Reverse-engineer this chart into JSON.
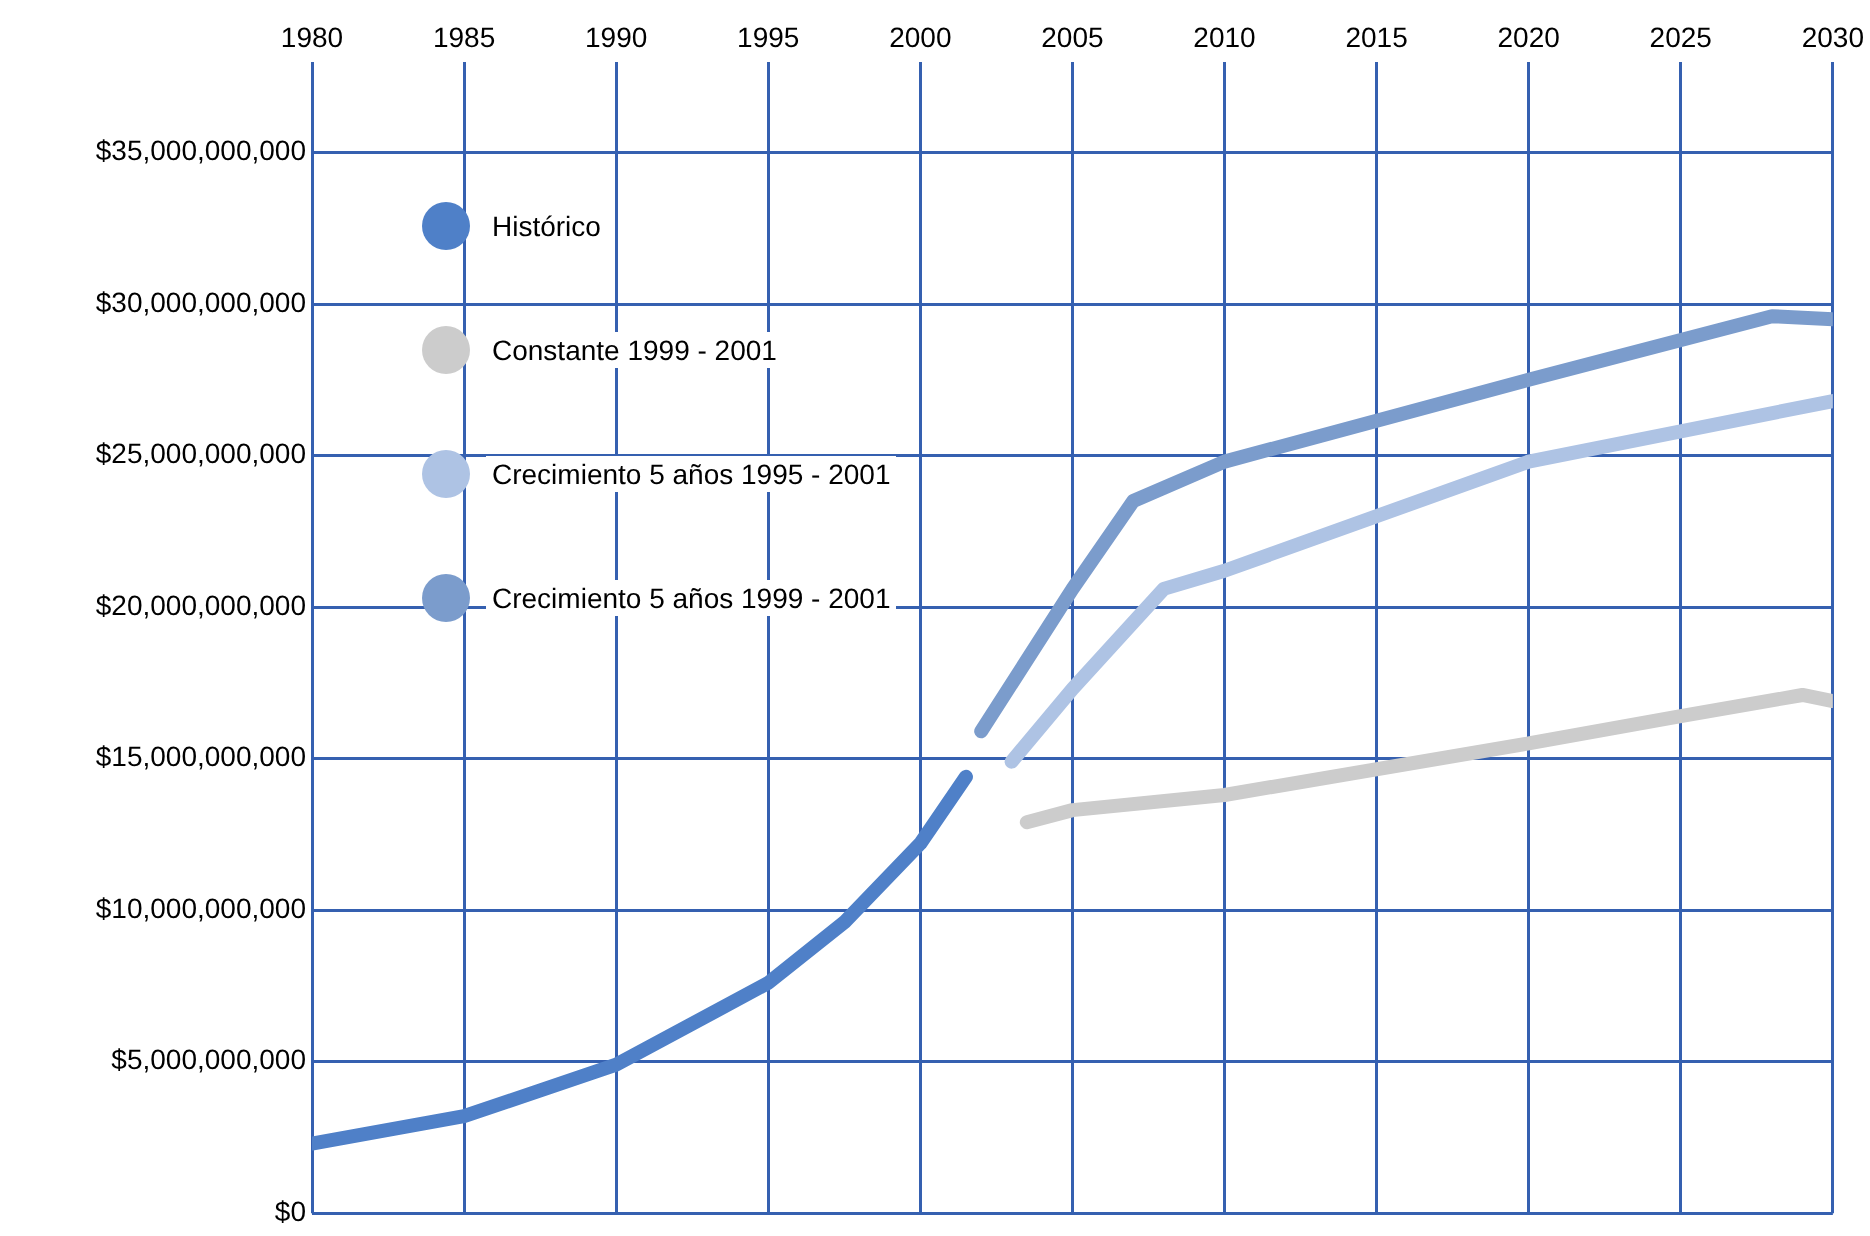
{
  "chart_data": {
    "type": "line",
    "xlim": [
      1980,
      2030
    ],
    "xticks": [
      1980,
      1985,
      1990,
      1995,
      2000,
      2005,
      2010,
      2015,
      2020,
      2025,
      2030
    ],
    "ylim": [
      0,
      38000000000
    ],
    "yticks": [
      {
        "value": 0,
        "label": "$0"
      },
      {
        "value": 5000000000,
        "label": "$5,000,000,000"
      },
      {
        "value": 10000000000,
        "label": "$10,000,000,000"
      },
      {
        "value": 15000000000,
        "label": "$15,000,000,000"
      },
      {
        "value": 20000000000,
        "label": "$20,000,000,000"
      },
      {
        "value": 25000000000,
        "label": "$25,000,000,000"
      },
      {
        "value": 30000000000,
        "label": "$30,000,000,000"
      },
      {
        "value": 35000000000,
        "label": "$35,000,000,000"
      }
    ],
    "grid": true,
    "legend": "top left",
    "marker": "none",
    "line_style": "solid",
    "series": [
      {
        "name": "Histórico",
        "color": "#4f80c8",
        "x": [
          1980,
          1985,
          1990,
          1995,
          1997.5,
          2000,
          2001.5
        ],
        "values": [
          2300000000,
          3200000000,
          4900000000,
          7600000000,
          9600000000,
          12200000000,
          14400000000
        ]
      },
      {
        "name": "Constante 1999 - 2001",
        "color": "#cccccc",
        "x": [
          2003.5,
          2005,
          2010,
          2020,
          2025,
          2029,
          2030
        ],
        "values": [
          12900000000,
          13300000000,
          13800000000,
          15500000000,
          16400000000,
          17100000000,
          16900000000
        ]
      },
      {
        "name": "Crecimiento 5 años 1995 - 2001",
        "color": "#aec3e4",
        "x": [
          2003,
          2005,
          2008,
          2010,
          2020,
          2030
        ],
        "values": [
          14900000000,
          17300000000,
          20600000000,
          21200000000,
          24800000000,
          26800000000
        ]
      },
      {
        "name": "Crecimiento 5 años 1999 - 2001",
        "color": "#7b9ccc",
        "x": [
          2002,
          2005,
          2007,
          2010,
          2020,
          2028,
          2030
        ],
        "values": [
          15900000000,
          20600000000,
          23500000000,
          24800000000,
          27500000000,
          29600000000,
          29500000000
        ]
      }
    ]
  }
}
